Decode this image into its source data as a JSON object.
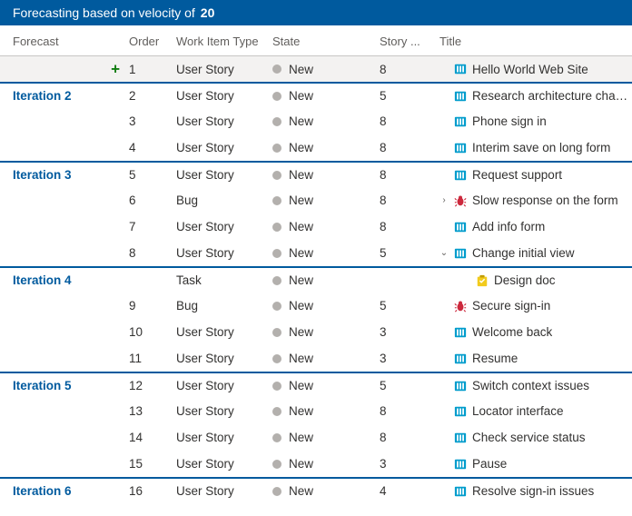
{
  "banner": {
    "label": "Forecasting based on velocity of",
    "velocity": "20"
  },
  "columns": {
    "forecast": "Forecast",
    "order": "Order",
    "type": "Work Item Type",
    "state": "State",
    "story": "Story ...",
    "title": "Title"
  },
  "colors": {
    "banner_bg": "#005a9e",
    "link": "#005a9e",
    "state_dot": "#b3b0ad",
    "story_icon": "#009ccc",
    "bug_icon": "#cc293d",
    "task_icon": "#f2cb1d",
    "plus": "#107c10"
  },
  "rows": [
    {
      "forecast": "",
      "plus": true,
      "highlight": true,
      "order": "1",
      "type": "User Story",
      "state": "New",
      "story": "8",
      "icon": "story",
      "title": "Hello World Web Site",
      "sep": "thin"
    },
    {
      "forecast": "Iteration 2",
      "order": "2",
      "type": "User Story",
      "state": "New",
      "story": "5",
      "icon": "story",
      "title": "Research architecture changes",
      "sep": "thick"
    },
    {
      "forecast": "",
      "order": "3",
      "type": "User Story",
      "state": "New",
      "story": "8",
      "icon": "story",
      "title": "Phone sign in",
      "sep": "none"
    },
    {
      "forecast": "",
      "order": "4",
      "type": "User Story",
      "state": "New",
      "story": "8",
      "icon": "story",
      "title": "Interim save on long form",
      "sep": "none"
    },
    {
      "forecast": "Iteration 3",
      "order": "5",
      "type": "User Story",
      "state": "New",
      "story": "8",
      "icon": "story",
      "title": "Request support",
      "sep": "thick"
    },
    {
      "forecast": "",
      "order": "6",
      "type": "Bug",
      "state": "New",
      "story": "8",
      "icon": "bug",
      "title": "Slow response on the form",
      "chev": "right",
      "sep": "none"
    },
    {
      "forecast": "",
      "order": "7",
      "type": "User Story",
      "state": "New",
      "story": "8",
      "icon": "story",
      "title": "Add info form",
      "sep": "none"
    },
    {
      "forecast": "",
      "order": "8",
      "type": "User Story",
      "state": "New",
      "story": "5",
      "icon": "story",
      "title": "Change initial view",
      "chev": "down",
      "sep": "none"
    },
    {
      "forecast": "Iteration 4",
      "order": "",
      "type": "Task",
      "state": "New",
      "story": "",
      "icon": "task",
      "title": "Design doc",
      "indent": 1,
      "sep": "thick"
    },
    {
      "forecast": "",
      "order": "9",
      "type": "Bug",
      "state": "New",
      "story": "5",
      "icon": "bug",
      "title": "Secure sign-in",
      "sep": "none"
    },
    {
      "forecast": "",
      "order": "10",
      "type": "User Story",
      "state": "New",
      "story": "3",
      "icon": "story",
      "title": "Welcome back",
      "sep": "none"
    },
    {
      "forecast": "",
      "order": "11",
      "type": "User Story",
      "state": "New",
      "story": "3",
      "icon": "story",
      "title": "Resume",
      "sep": "none"
    },
    {
      "forecast": "Iteration 5",
      "order": "12",
      "type": "User Story",
      "state": "New",
      "story": "5",
      "icon": "story",
      "title": "Switch context issues",
      "sep": "thick"
    },
    {
      "forecast": "",
      "order": "13",
      "type": "User Story",
      "state": "New",
      "story": "8",
      "icon": "story",
      "title": "Locator interface",
      "sep": "none"
    },
    {
      "forecast": "",
      "order": "14",
      "type": "User Story",
      "state": "New",
      "story": "8",
      "icon": "story",
      "title": "Check service status",
      "sep": "none"
    },
    {
      "forecast": "",
      "order": "15",
      "type": "User Story",
      "state": "New",
      "story": "3",
      "icon": "story",
      "title": "Pause",
      "sep": "none"
    },
    {
      "forecast": "Iteration 6",
      "order": "16",
      "type": "User Story",
      "state": "New",
      "story": "4",
      "icon": "story",
      "title": "Resolve sign-in issues",
      "sep": "thick"
    }
  ]
}
